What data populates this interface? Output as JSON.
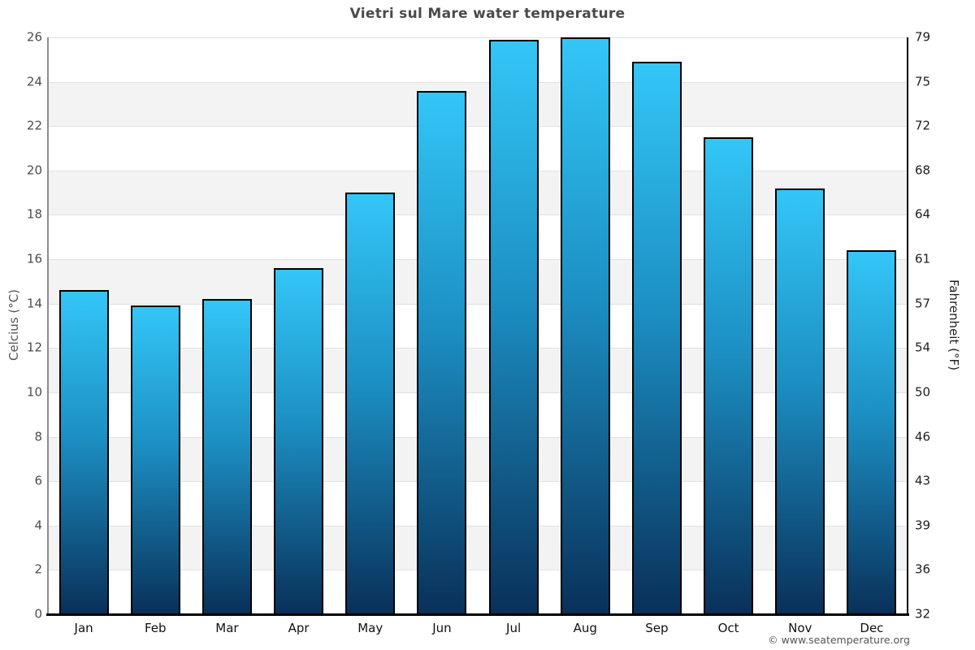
{
  "title": "Vietri sul Mare water temperature",
  "footer": "© www.seatemperature.org",
  "chart_data": {
    "type": "bar",
    "title": "Vietri sul Mare water temperature",
    "categories": [
      "Jan",
      "Feb",
      "Mar",
      "Apr",
      "May",
      "Jun",
      "Jul",
      "Aug",
      "Sep",
      "Oct",
      "Nov",
      "Dec"
    ],
    "values": [
      14.6,
      13.9,
      14.2,
      15.6,
      19.0,
      23.6,
      25.9,
      26.0,
      24.9,
      21.5,
      19.2,
      16.4
    ],
    "xlabel": "",
    "ylabel_left": "Celcius (°C)",
    "ylabel_right": "Fahrenheit (°F)",
    "ylim": [
      0,
      26
    ],
    "y_ticks_celsius": [
      0,
      2,
      4,
      6,
      8,
      10,
      12,
      14,
      16,
      18,
      20,
      22,
      24,
      26
    ],
    "y_ticks_fahrenheit": [
      32,
      36,
      39,
      43,
      46,
      50,
      54,
      57,
      61,
      64,
      68,
      72,
      75,
      79
    ],
    "grid": true,
    "legend": "none",
    "colors": {
      "bar_top": "#33c6f7",
      "bar_mid": "#1c8fc3",
      "bar_bottom": "#093059",
      "bar_border": "#000000",
      "band_gray": "#f3f3f3",
      "band_white": "#ffffff",
      "gridline": "#e1e1e1",
      "title_text": "#4a4a4a",
      "left_tick_text": "#4d4d4d",
      "right_tick_text": "#1f1f1f",
      "month_text": "#111111"
    }
  }
}
